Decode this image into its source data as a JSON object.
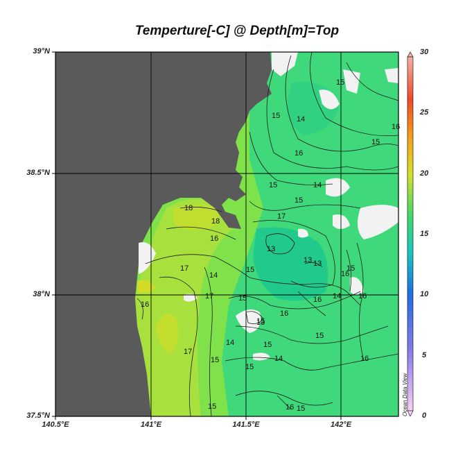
{
  "title": "Temperture[-C] @ Depth[m]=Top",
  "axes": {
    "lat_ticks": [
      "39°N",
      "38.5°N",
      "38°N",
      "37.5°N"
    ],
    "lon_ticks": [
      "140.5°E",
      "141°E",
      "141.5°E",
      "142°E"
    ]
  },
  "colorbar": {
    "min": 0,
    "max": 30,
    "ticks": [
      "0",
      "5",
      "10",
      "15",
      "20",
      "25",
      "30"
    ],
    "watermark": "Ocean Data View"
  },
  "contour_labels": [
    "15",
    "15",
    "14",
    "16",
    "15",
    "16",
    "15",
    "14",
    "15",
    "18",
    "18",
    "16",
    "17",
    "13",
    "13",
    "13",
    "17",
    "15",
    "16",
    "14",
    "15",
    "14",
    "17",
    "16",
    "16",
    "15",
    "13",
    "16",
    "15",
    "15",
    "14",
    "14",
    "15",
    "15",
    "16",
    "16",
    "15",
    "16",
    "15",
    "17",
    "15"
  ],
  "colors": {
    "land": "#5a5a5a",
    "water_warm": "#b8e23c",
    "water_mid": "#7fe24a",
    "water_cool": "#33d27e",
    "no_data": "#f2f2f2"
  }
}
